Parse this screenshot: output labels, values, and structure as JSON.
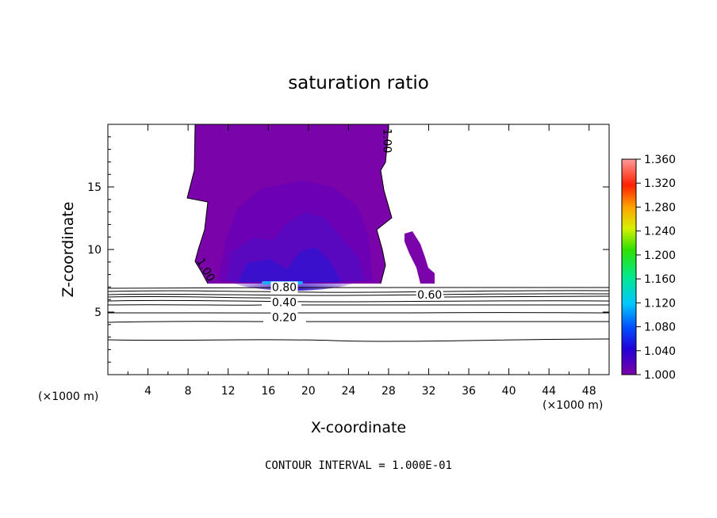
{
  "chart_data": {
    "type": "heatmap",
    "title": "saturation ratio",
    "xlabel": "X-coordinate",
    "ylabel": "Z-coordinate",
    "x_unit": "(×1000 m)",
    "x_unit_right": "(×1000 m)",
    "xlim": [
      0,
      50
    ],
    "ylim": [
      0,
      20
    ],
    "x_ticks": [
      4,
      8,
      12,
      16,
      20,
      24,
      28,
      32,
      36,
      40,
      44,
      48
    ],
    "y_ticks": [
      5,
      10,
      15
    ],
    "colorbar": {
      "range": [
        1.0,
        1.36
      ],
      "labels": [
        "1.360",
        "1.320",
        "1.280",
        "1.240",
        "1.200",
        "1.160",
        "1.120",
        "1.080",
        "1.040",
        "1.000"
      ]
    },
    "contour_labels": [
      {
        "text": "1.00",
        "x": 27.9,
        "y": 18.5,
        "rot": 90
      },
      {
        "text": "1.00",
        "x": 9.8,
        "y": 8.2,
        "rot": 60
      },
      {
        "text": "0.80",
        "x": 17.6,
        "y": 6.8,
        "rot": 0
      },
      {
        "text": "0.60",
        "x": 32.1,
        "y": 6.2,
        "rot": 0
      },
      {
        "text": "0.40",
        "x": 17.6,
        "y": 5.6,
        "rot": 0
      },
      {
        "text": "0.20",
        "x": 17.6,
        "y": 4.4,
        "rot": 0
      }
    ],
    "contour_interval": "CONTOUR INTERVAL = 1.000E-01",
    "grid": false
  }
}
